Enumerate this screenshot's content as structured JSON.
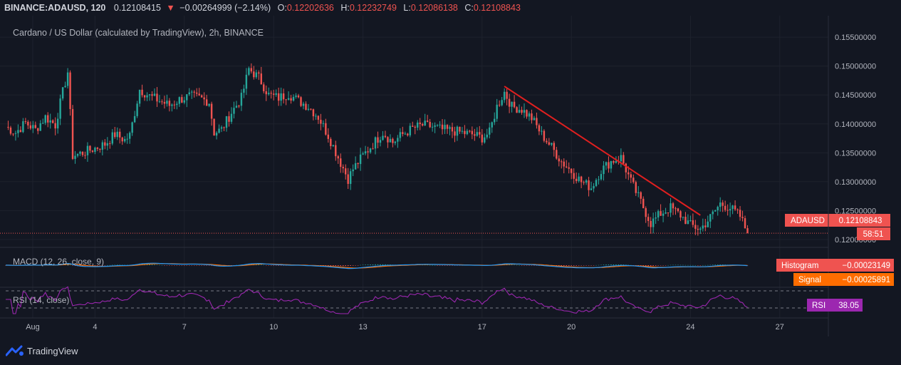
{
  "header": {
    "symbol": "BINANCE:ADAUSD, 120",
    "last": "0.12108415",
    "change_arrow": "▼",
    "change": "−0.00264999 (−2.14%)",
    "o_label": "O:",
    "o": "0.12202636",
    "h_label": "H:",
    "h": "0.12232749",
    "l_label": "L:",
    "l": "0.12086138",
    "c_label": "C:",
    "c": "0.12108843"
  },
  "chart_title": "Cardano / US Dollar (calculated by TradingView), 2h, BINANCE",
  "price_tag": {
    "symbol": "ADAUSD",
    "value": "0.12108843",
    "countdown": "58:51"
  },
  "macd": {
    "title": "MACD (12, 26, close, 9)",
    "hist_label": "Histogram",
    "hist_value": "−0.00023149",
    "signal_label": "Signal",
    "signal_value": "−0.00025891"
  },
  "rsi": {
    "title": "RSI (14, close)",
    "label": "RSI",
    "value": "38.05"
  },
  "branding": {
    "name": "TradingView"
  },
  "colors": {
    "background": "#131722",
    "up": "#26a69a",
    "down": "#ef5350",
    "macd": "#2196f3",
    "signal": "#ff6d00",
    "rsi": "#9c27b0",
    "trendline": "#e01f1f"
  },
  "chart_data": {
    "type": "candlestick",
    "title": "Cardano / US Dollar (calculated by TradingView), 2h, BINANCE",
    "y_ticks": [
      "0.15500000",
      "0.15000000",
      "0.14500000",
      "0.14000000",
      "0.13500000",
      "0.13000000",
      "0.12500000",
      "0.12000000"
    ],
    "ylim": [
      0.1195,
      0.1565
    ],
    "x_ticks": [
      "Aug",
      "4",
      "7",
      "10",
      "13",
      "17",
      "20",
      "24",
      "27"
    ],
    "close_path": [
      [
        "Aug 1 00:00",
        0.1395
      ],
      [
        "Aug 1 08:00",
        0.1385
      ],
      [
        "Aug 1 16:00",
        0.1402
      ],
      [
        "Aug 2 00:00",
        0.139
      ],
      [
        "Aug 2 08:00",
        0.1412
      ],
      [
        "Aug 2 16:00",
        0.1398
      ],
      [
        "Aug 2 22:00",
        0.1455
      ],
      [
        "Aug 3 02:00",
        0.149
      ],
      [
        "Aug 3 06:00",
        0.1345
      ],
      [
        "Aug 3 14:00",
        0.135
      ],
      [
        "Aug 4 00:00",
        0.1358
      ],
      [
        "Aug 4 08:00",
        0.1365
      ],
      [
        "Aug 4 16:00",
        0.1382
      ],
      [
        "Aug 5 00:00",
        0.1372
      ],
      [
        "Aug 5 04:00",
        0.138
      ],
      [
        "Aug 5 12:00",
        0.146
      ],
      [
        "Aug 5 20:00",
        0.1448
      ],
      [
        "Aug 6 04:00",
        0.144
      ],
      [
        "Aug 6 12:00",
        0.1432
      ],
      [
        "Aug 6 20:00",
        0.1442
      ],
      [
        "Aug 7 04:00",
        0.1448
      ],
      [
        "Aug 7 12:00",
        0.1445
      ],
      [
        "Aug 7 20:00",
        0.1438
      ],
      [
        "Aug 8 00:00",
        0.1385
      ],
      [
        "Aug 8 06:00",
        0.139
      ],
      [
        "Aug 8 14:00",
        0.142
      ],
      [
        "Aug 8 22:00",
        0.1445
      ],
      [
        "Aug 9 04:00",
        0.1495
      ],
      [
        "Aug 9 12:00",
        0.148
      ],
      [
        "Aug 9 20:00",
        0.145
      ],
      [
        "Aug 10 04:00",
        0.1445
      ],
      [
        "Aug 10 12:00",
        0.1452
      ],
      [
        "Aug 10 20:00",
        0.144
      ],
      [
        "Aug 11 04:00",
        0.143
      ],
      [
        "Aug 11 12:00",
        0.1412
      ],
      [
        "Aug 11 20:00",
        0.138
      ],
      [
        "Aug 12 04:00",
        0.1342
      ],
      [
        "Aug 12 12:00",
        0.1305
      ],
      [
        "Aug 12 16:00",
        0.1322
      ],
      [
        "Aug 13 00:00",
        0.1345
      ],
      [
        "Aug 13 08:00",
        0.1365
      ],
      [
        "Aug 13 16:00",
        0.1385
      ],
      [
        "Aug 14 00:00",
        0.1368
      ],
      [
        "Aug 14 08:00",
        0.1382
      ],
      [
        "Aug 14 16:00",
        0.1392
      ],
      [
        "Aug 15 00:00",
        0.1398
      ],
      [
        "Aug 15 08:00",
        0.1395
      ],
      [
        "Aug 15 16:00",
        0.139
      ],
      [
        "Aug 16 00:00",
        0.1388
      ],
      [
        "Aug 16 08:00",
        0.1385
      ],
      [
        "Aug 16 16:00",
        0.1382
      ],
      [
        "Aug 17 00:00",
        0.1376
      ],
      [
        "Aug 17 06:00",
        0.1385
      ],
      [
        "Aug 17 12:00",
        0.143
      ],
      [
        "Aug 17 18:00",
        0.1455
      ],
      [
        "Aug 18 00:00",
        0.143
      ],
      [
        "Aug 18 08:00",
        0.1425
      ],
      [
        "Aug 18 16:00",
        0.141
      ],
      [
        "Aug 19 00:00",
        0.1382
      ],
      [
        "Aug 19 08:00",
        0.136
      ],
      [
        "Aug 19 16:00",
        0.1335
      ],
      [
        "Aug 20 00:00",
        0.1318
      ],
      [
        "Aug 20 08:00",
        0.13
      ],
      [
        "Aug 20 16:00",
        0.129
      ],
      [
        "Aug 21 00:00",
        0.132
      ],
      [
        "Aug 21 08:00",
        0.1335
      ],
      [
        "Aug 21 16:00",
        0.1342
      ],
      [
        "Aug 22 00:00",
        0.13
      ],
      [
        "Aug 22 08:00",
        0.1265
      ],
      [
        "Aug 22 16:00",
        0.1228
      ],
      [
        "Aug 23 00:00",
        0.1245
      ],
      [
        "Aug 23 08:00",
        0.1255
      ],
      [
        "Aug 23 16:00",
        0.1242
      ],
      [
        "Aug 24 00:00",
        0.1225
      ],
      [
        "Aug 24 08:00",
        0.1218
      ],
      [
        "Aug 24 16:00",
        0.1238
      ],
      [
        "Aug 25 00:00",
        0.1262
      ],
      [
        "Aug 25 08:00",
        0.1255
      ],
      [
        "Aug 25 16:00",
        0.124
      ],
      [
        "Aug 25 22:00",
        0.1211
      ]
    ],
    "trendline": [
      [
        "Aug 17 18:00",
        0.1465
      ],
      [
        "Aug 24 08:00",
        0.1242
      ]
    ],
    "last_price": 0.12108843,
    "series": [
      {
        "name": "ADAUSD",
        "type": "candles"
      }
    ],
    "indicators": {
      "macd": {
        "title": "MACD (12, 26, close, 9)",
        "histogram": -0.00023149,
        "signal": -0.00025891
      },
      "rsi": {
        "title": "RSI (14, close)",
        "last": 38.05
      }
    },
    "grid": true
  }
}
